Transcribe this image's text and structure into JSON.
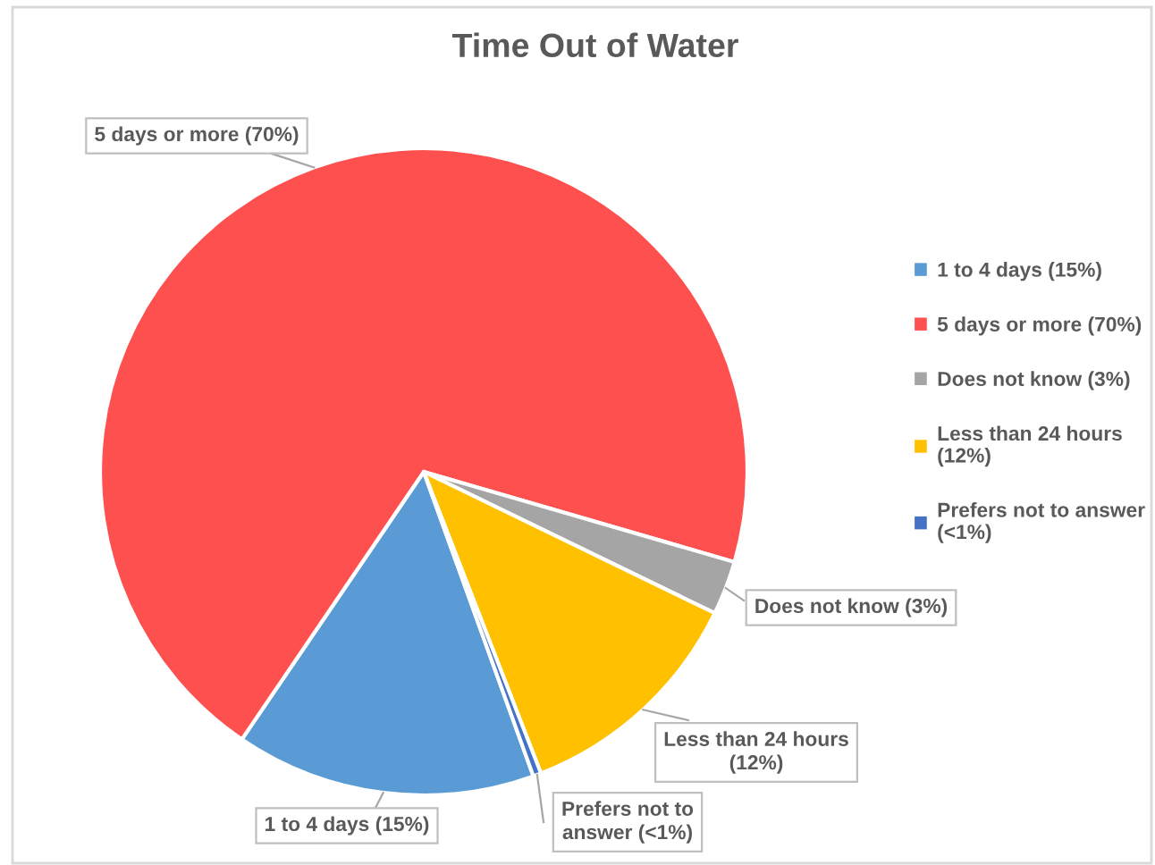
{
  "chart_data": {
    "type": "pie",
    "title": "Time Out of Water",
    "categories": [
      "1 to 4 days (15%)",
      "5 days or more (70%)",
      "Does not know (3%)",
      "Less than 24 hours (12%)",
      "Prefers not to answer (<1%)"
    ],
    "values": [
      15,
      70,
      2.7,
      11.9,
      0.4
    ],
    "colors": [
      "#5b9bd5",
      "#ff5050",
      "#a5a5a5",
      "#ffc000",
      "#4472c4"
    ],
    "value_labels": [
      "1 to 4 days (15%)",
      "5 days or more (70%)",
      "Does not know (3%)",
      "Less than 24 hours (12%)",
      "Prefers not to answer (<1%)"
    ],
    "legend": "right"
  }
}
